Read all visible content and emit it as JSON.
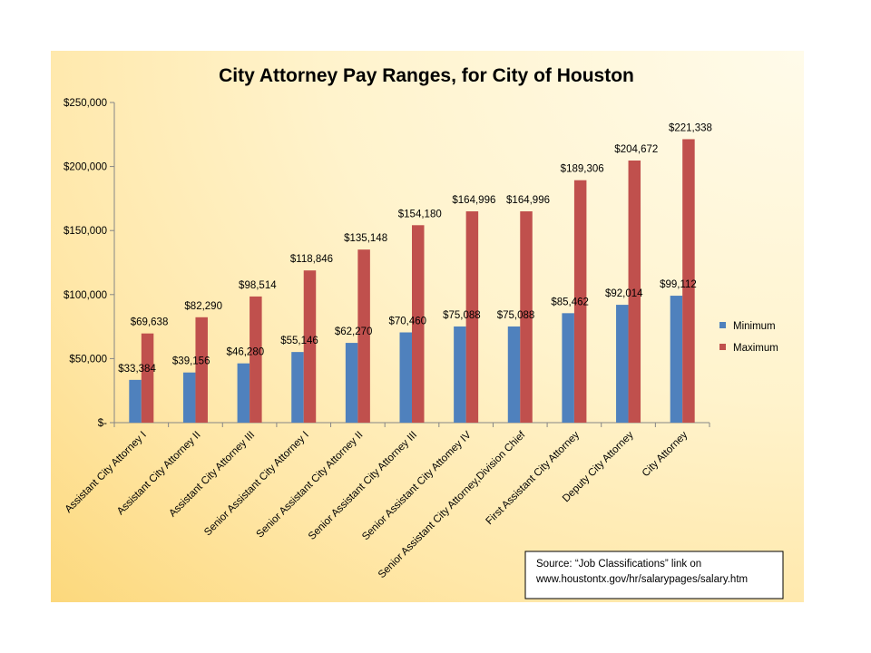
{
  "chart_data": {
    "type": "bar",
    "title": "City Attorney Pay Ranges, for City of Houston",
    "categories": [
      "Assistant City Attorney I",
      "Assistant City Attorney II",
      "Assistant City Attorney III",
      "Senior Assistant City Attorney I",
      "Senior Assistant City Attorney II",
      "Senior Assistant City Attorney III",
      "Senior Assistant City Attomey IV",
      "Senior Assistant City Attorney,Division Chief",
      "First Assistant City Attorney",
      "Deputy City Attorney",
      "City Attorney"
    ],
    "series": [
      {
        "name": "Minimum",
        "color": "#4f81bd",
        "values": [
          33384,
          39156,
          46280,
          55146,
          62270,
          70460,
          75088,
          75088,
          85462,
          92014,
          99112
        ],
        "labels": [
          "$33,384",
          "$39,156",
          "$46,280",
          "$55,146",
          "$62,270",
          "$70,460",
          "$75,088",
          "$75,088",
          "$85,462",
          "$92,014",
          "$99,112"
        ]
      },
      {
        "name": "Maximum",
        "color": "#c0504d",
        "values": [
          69638,
          82290,
          98514,
          118846,
          135148,
          154180,
          164996,
          164996,
          189306,
          204672,
          221338
        ],
        "labels": [
          "$69,638",
          "$82,290",
          "$98,514",
          "$118,846",
          "$135,148",
          "$154,180",
          "$164,996",
          "$164,996",
          "$189,306",
          "$204,672",
          "$221,338"
        ]
      }
    ],
    "ylim": [
      0,
      250000
    ],
    "yticks": [
      0,
      50000,
      100000,
      150000,
      200000,
      250000
    ],
    "ytick_labels": [
      "$-",
      "$50,000",
      "$100,000",
      "$150,000",
      "$200,000",
      "$250,000"
    ],
    "grid": false,
    "legend_position": "right",
    "source_note": [
      "Source:  “Job Classifications” link on",
      "www.houstontx.gov/hr/salarypages/salary.htm"
    ]
  }
}
